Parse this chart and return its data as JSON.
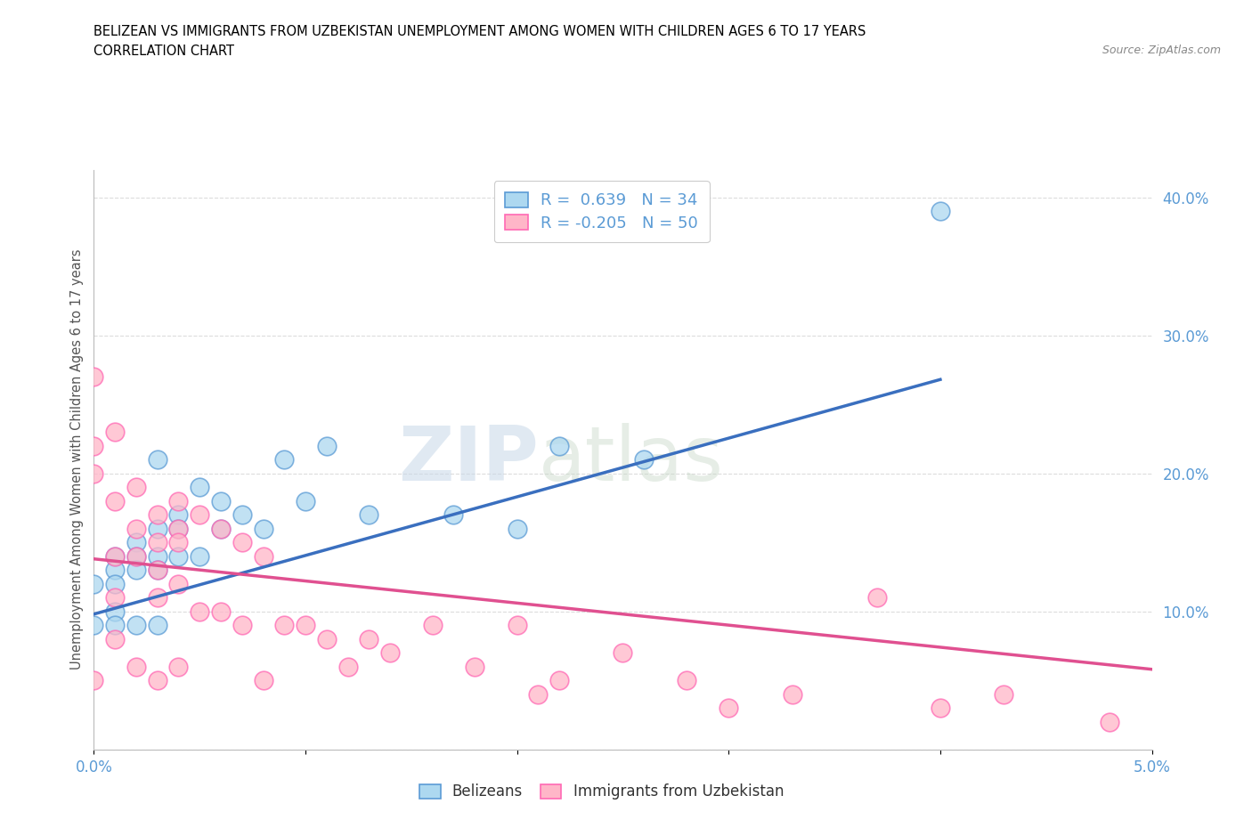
{
  "title_line1": "BELIZEAN VS IMMIGRANTS FROM UZBEKISTAN UNEMPLOYMENT AMONG WOMEN WITH CHILDREN AGES 6 TO 17 YEARS",
  "title_line2": "CORRELATION CHART",
  "source_text": "Source: ZipAtlas.com",
  "ylabel": "Unemployment Among Women with Children Ages 6 to 17 years",
  "xlim": [
    0.0,
    0.05
  ],
  "ylim": [
    0.0,
    0.42
  ],
  "xticks": [
    0.0,
    0.01,
    0.02,
    0.03,
    0.04,
    0.05
  ],
  "xticklabels": [
    "0.0%",
    "",
    "",
    "",
    "",
    "5.0%"
  ],
  "ytick_positions": [
    0.0,
    0.1,
    0.2,
    0.3,
    0.4
  ],
  "ytick_labels": [
    "",
    "10.0%",
    "20.0%",
    "30.0%",
    "40.0%"
  ],
  "belizean_color": "#ADD8F0",
  "uzbekistan_color": "#FFB6C8",
  "belizean_edge_color": "#5B9BD5",
  "uzbekistan_edge_color": "#FF69B4",
  "belizean_line_color": "#3A6FBF",
  "uzbekistan_line_color": "#E05090",
  "R_belizean": 0.639,
  "N_belizean": 34,
  "R_uzbekistan": -0.205,
  "N_uzbekistan": 50,
  "belizean_scatter_x": [
    0.0,
    0.0,
    0.001,
    0.001,
    0.001,
    0.001,
    0.001,
    0.002,
    0.002,
    0.002,
    0.002,
    0.003,
    0.003,
    0.003,
    0.003,
    0.003,
    0.004,
    0.004,
    0.004,
    0.005,
    0.005,
    0.006,
    0.006,
    0.007,
    0.008,
    0.009,
    0.01,
    0.011,
    0.013,
    0.017,
    0.02,
    0.022,
    0.026,
    0.04
  ],
  "belizean_scatter_y": [
    0.12,
    0.09,
    0.14,
    0.13,
    0.12,
    0.1,
    0.09,
    0.15,
    0.14,
    0.13,
    0.09,
    0.21,
    0.16,
    0.14,
    0.13,
    0.09,
    0.17,
    0.16,
    0.14,
    0.19,
    0.14,
    0.18,
    0.16,
    0.17,
    0.16,
    0.21,
    0.18,
    0.22,
    0.17,
    0.17,
    0.16,
    0.22,
    0.21,
    0.39
  ],
  "uzbekistan_scatter_x": [
    0.0,
    0.0,
    0.0,
    0.0,
    0.001,
    0.001,
    0.001,
    0.001,
    0.001,
    0.002,
    0.002,
    0.002,
    0.002,
    0.003,
    0.003,
    0.003,
    0.003,
    0.003,
    0.004,
    0.004,
    0.004,
    0.004,
    0.004,
    0.005,
    0.005,
    0.006,
    0.006,
    0.007,
    0.007,
    0.008,
    0.008,
    0.009,
    0.01,
    0.011,
    0.012,
    0.013,
    0.014,
    0.016,
    0.018,
    0.02,
    0.021,
    0.022,
    0.025,
    0.028,
    0.03,
    0.033,
    0.037,
    0.04,
    0.043,
    0.048
  ],
  "uzbekistan_scatter_y": [
    0.27,
    0.22,
    0.2,
    0.05,
    0.23,
    0.18,
    0.14,
    0.11,
    0.08,
    0.19,
    0.16,
    0.14,
    0.06,
    0.17,
    0.15,
    0.13,
    0.11,
    0.05,
    0.18,
    0.16,
    0.15,
    0.12,
    0.06,
    0.17,
    0.1,
    0.16,
    0.1,
    0.15,
    0.09,
    0.14,
    0.05,
    0.09,
    0.09,
    0.08,
    0.06,
    0.08,
    0.07,
    0.09,
    0.06,
    0.09,
    0.04,
    0.05,
    0.07,
    0.05,
    0.03,
    0.04,
    0.11,
    0.03,
    0.04,
    0.02
  ],
  "belizean_trend_x": [
    0.0,
    0.04
  ],
  "belizean_trend_y": [
    0.098,
    0.268
  ],
  "uzbekistan_trend_x": [
    0.0,
    0.05
  ],
  "uzbekistan_trend_y": [
    0.138,
    0.058
  ],
  "watermark_zip": "ZIP",
  "watermark_atlas": "atlas",
  "background_color": "#FFFFFF",
  "grid_color": "#DCDCDC",
  "tick_color": "#5B9BD5",
  "title_color": "#000000",
  "ylabel_color": "#555555"
}
